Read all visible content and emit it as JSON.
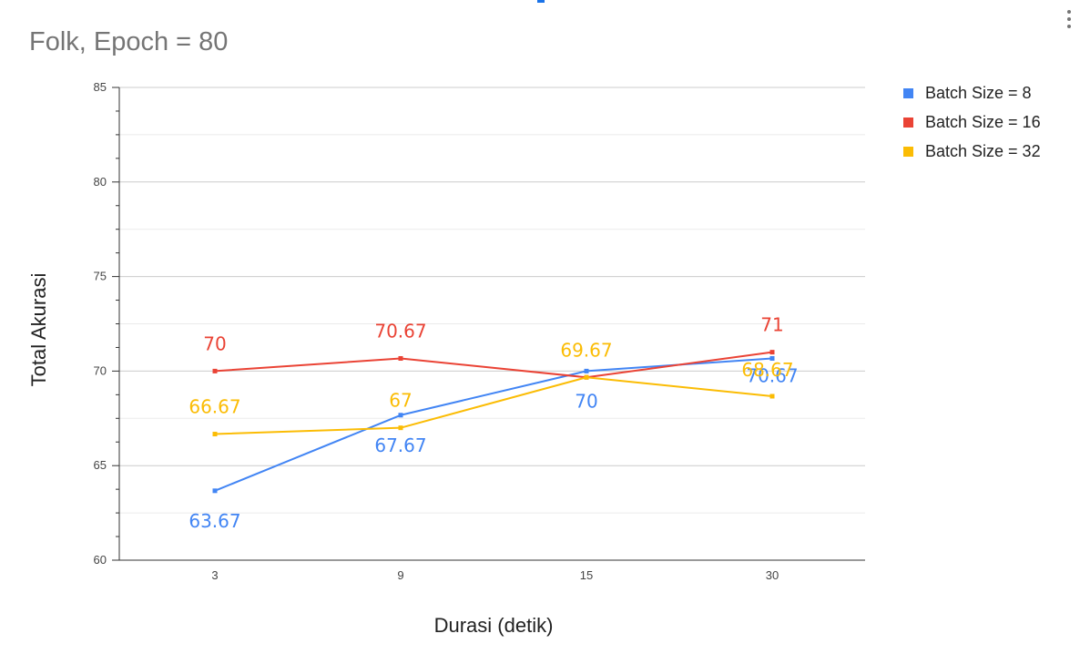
{
  "chart_data": {
    "type": "line",
    "title": "Folk, Epoch = 80",
    "xlabel": "Durasi (detik)",
    "ylabel": "Total Akurasi",
    "categories": [
      "3",
      "9",
      "15",
      "30"
    ],
    "ylim": [
      60,
      85
    ],
    "yticks": [
      60,
      65,
      70,
      75,
      80,
      85
    ],
    "grid": true,
    "legend_position": "right",
    "series": [
      {
        "name": "Batch Size = 8",
        "color": "#4285f4",
        "values": [
          63.67,
          67.67,
          70,
          70.67
        ],
        "labels": [
          "63.67",
          "67.67",
          "70",
          "70.67"
        ]
      },
      {
        "name": "Batch Size = 16",
        "color": "#ea4335",
        "values": [
          70,
          70.67,
          69.67,
          71
        ],
        "labels": [
          "70",
          "70.67",
          "",
          "71"
        ]
      },
      {
        "name": "Batch Size = 32",
        "color": "#fbbc04",
        "values": [
          66.67,
          67,
          69.67,
          68.67
        ],
        "labels": [
          "66.67",
          "67",
          "69.67",
          "68.67"
        ]
      }
    ]
  },
  "icons": {
    "menu": "more-vert-icon"
  }
}
